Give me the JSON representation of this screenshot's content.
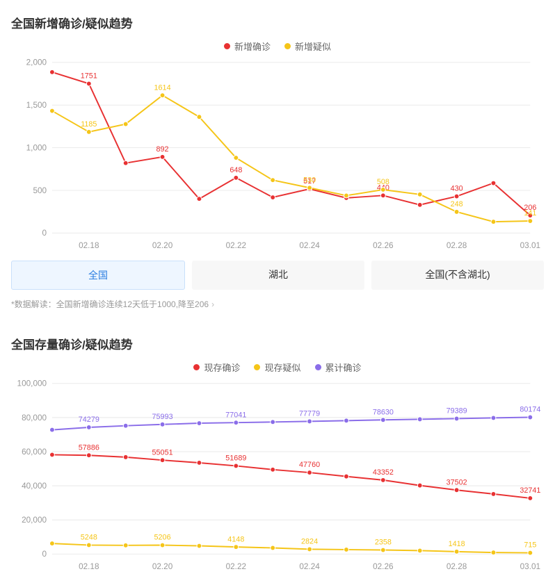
{
  "chart1": {
    "title": "全国新增确诊/疑似趋势",
    "legend": [
      {
        "label": "新增确诊",
        "color": "#e83132"
      },
      {
        "label": "新增疑似",
        "color": "#f5c518"
      }
    ],
    "xcats": [
      "02.17",
      "02.18",
      "02.19",
      "02.20",
      "02.21",
      "02.22",
      "02.23",
      "02.24",
      "02.25",
      "02.26",
      "02.27",
      "02.28",
      "02.29",
      "03.01"
    ],
    "xticks": [
      "02.18",
      "02.20",
      "02.22",
      "02.24",
      "02.26",
      "02.28",
      "03.01"
    ],
    "ylim": [
      0,
      2000
    ],
    "yticks": [
      0,
      500,
      1000,
      1500,
      2000
    ],
    "ytick_labels": [
      "0",
      "500",
      "1,000",
      "1,500",
      "2,000"
    ],
    "series": [
      {
        "name": "新增确诊",
        "color": "#e83132",
        "values": [
          1886,
          1751,
          820,
          892,
          400,
          648,
          418,
          517,
          411,
          440,
          330,
          430,
          585,
          206
        ],
        "labels": {
          "1": "1751",
          "3": "892",
          "5": "648",
          "7": "517",
          "9": "440",
          "11": "430",
          "13": "206"
        }
      },
      {
        "name": "新增疑似",
        "color": "#f5c518",
        "values": [
          1432,
          1185,
          1277,
          1614,
          1361,
          882,
          620,
          530,
          439,
          508,
          452,
          248,
          132,
          141
        ],
        "labels": {
          "1": "1185",
          "3": "1614",
          "7": "530",
          "9": "508",
          "11": "248",
          "13": "141"
        }
      }
    ],
    "tabs": [
      "全国",
      "湖北",
      "全国(不含湖北)"
    ],
    "active_tab": 0,
    "note": "*数据解读：全国新增确诊连续12天低于1000,降至206"
  },
  "chart2": {
    "title": "全国存量确诊/疑似趋势",
    "legend": [
      {
        "label": "现存确诊",
        "color": "#e83132"
      },
      {
        "label": "现存疑似",
        "color": "#f5c518"
      },
      {
        "label": "累计确诊",
        "color": "#8a6de9"
      }
    ],
    "xcats": [
      "02.17",
      "02.18",
      "02.19",
      "02.20",
      "02.21",
      "02.22",
      "02.23",
      "02.24",
      "02.25",
      "02.26",
      "02.27",
      "02.28",
      "02.29",
      "03.01"
    ],
    "xticks": [
      "02.18",
      "02.20",
      "02.22",
      "02.24",
      "02.26",
      "02.28",
      "03.01"
    ],
    "ylim": [
      0,
      100000
    ],
    "yticks": [
      0,
      20000,
      40000,
      60000,
      80000,
      100000
    ],
    "ytick_labels": [
      "0",
      "20,000",
      "40,000",
      "60,000",
      "80,000",
      "100,000"
    ],
    "series": [
      {
        "name": "现存确诊",
        "color": "#e83132",
        "values": [
          58200,
          57886,
          56800,
          55051,
          53500,
          51689,
          49500,
          47760,
          45500,
          43352,
          40200,
          37502,
          35200,
          32741
        ],
        "labels": {
          "1": "57886",
          "3": "55051",
          "5": "51689",
          "7": "47760",
          "9": "43352",
          "11": "37502",
          "13": "32741"
        }
      },
      {
        "name": "现存疑似",
        "color": "#f5c518",
        "values": [
          6200,
          5248,
          5100,
          5206,
          4800,
          4148,
          3600,
          2824,
          2600,
          2358,
          2000,
          1418,
          900,
          715
        ],
        "labels": {
          "1": "5248",
          "3": "5206",
          "5": "4148",
          "7": "2824",
          "9": "2358",
          "11": "1418",
          "13": "715"
        }
      },
      {
        "name": "累计确诊",
        "color": "#8a6de9",
        "values": [
          72800,
          74279,
          75200,
          75993,
          76700,
          77041,
          77400,
          77779,
          78200,
          78630,
          79000,
          79389,
          79800,
          80174
        ],
        "labels": {
          "1": "74279",
          "3": "75993",
          "5": "77041",
          "7": "77779",
          "9": "78630",
          "11": "79389",
          "13": "80174"
        }
      }
    ]
  },
  "style": {
    "grid_color": "#e8e8e8",
    "axis_text_color": "#999",
    "marker_radius": 3.5,
    "line_width": 2
  }
}
